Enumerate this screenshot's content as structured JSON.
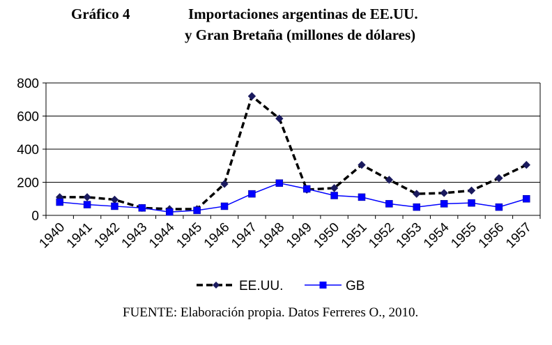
{
  "header": {
    "label": "Gráfico 4",
    "title_line1": "Importaciones argentinas de EE.UU.",
    "title_line2": "y Gran Bretaña (millones de dólares)"
  },
  "source": "FUENTE:  Elaboración propia. Datos Ferreres O., 2010.",
  "chart_data": {
    "type": "line",
    "title": "Importaciones argentinas de EE.UU. y Gran Bretaña (millones de dólares)",
    "xlabel": "",
    "ylabel": "",
    "ylim": [
      0,
      800
    ],
    "yticks": [
      "0",
      "200",
      "400",
      "600",
      "800"
    ],
    "grid": true,
    "legend_position": "bottom",
    "categories": [
      "1940",
      "1941",
      "1942",
      "1943",
      "1944",
      "1945",
      "1946",
      "1947",
      "1948",
      "1949",
      "1950",
      "1951",
      "1952",
      "1953",
      "1954",
      "1955",
      "1956",
      "1957"
    ],
    "series": [
      {
        "name": "EE.UU.",
        "style": "dashed",
        "marker": "diamond",
        "color": "#000000",
        "values": [
          110,
          110,
          95,
          45,
          38,
          38,
          190,
          720,
          585,
          155,
          165,
          305,
          215,
          130,
          135,
          150,
          225,
          305
        ]
      },
      {
        "name": "GB",
        "style": "solid",
        "marker": "square",
        "color": "#0000ff",
        "values": [
          80,
          65,
          55,
          45,
          20,
          30,
          55,
          130,
          195,
          160,
          120,
          110,
          70,
          50,
          70,
          75,
          50,
          100
        ]
      }
    ]
  }
}
